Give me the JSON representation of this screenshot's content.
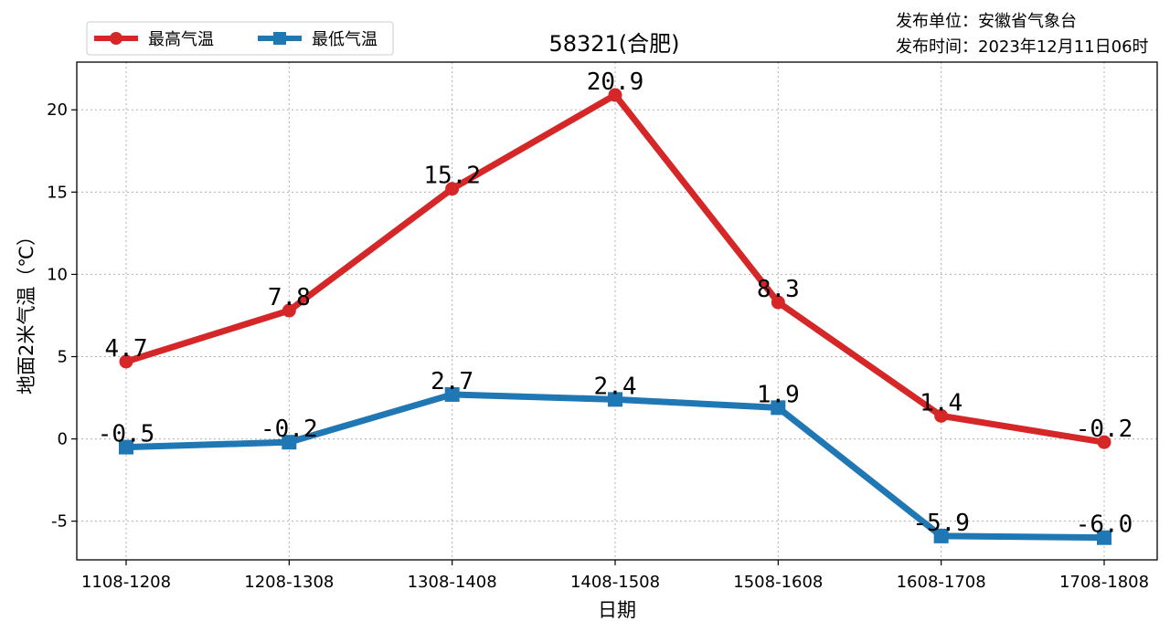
{
  "publisher": {
    "unit_line": "发布单位：安徽省气象台",
    "time_line": "发布时间：2023年12月11日06时"
  },
  "chart_data": {
    "type": "line",
    "title": "58321(合肥)",
    "xlabel": "日期",
    "ylabel": "地面2米气温（℃）",
    "categories": [
      "1108-1208",
      "1208-1308",
      "1308-1408",
      "1408-1508",
      "1508-1608",
      "1608-1708",
      "1708-1808"
    ],
    "series": [
      {
        "name": "最高气温",
        "color": "#d62728",
        "marker": "circle",
        "values": [
          4.7,
          7.8,
          15.2,
          20.9,
          8.3,
          1.4,
          -0.2
        ],
        "labels": [
          "4.7",
          "7.8",
          "15.2",
          "20.9",
          "8.3",
          "1.4",
          "-0.2"
        ]
      },
      {
        "name": "最低气温",
        "color": "#1f77b4",
        "marker": "square",
        "values": [
          -0.5,
          -0.2,
          2.7,
          2.4,
          1.9,
          -5.9,
          -6.0
        ],
        "labels": [
          "-0.5",
          "-0.2",
          "2.7",
          "2.4",
          "1.9",
          "-5.9",
          "-6.0"
        ]
      }
    ],
    "ylim": [
      -7.35,
      22.9
    ],
    "yticks": [
      -5,
      0,
      5,
      10,
      15,
      20
    ],
    "ytick_labels": [
      "-5",
      "0",
      "5",
      "10",
      "15",
      "20"
    ],
    "grid": true,
    "legend_position": "top-left"
  }
}
